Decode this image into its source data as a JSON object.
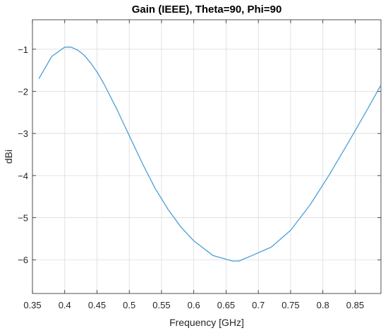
{
  "chart_data": {
    "type": "line",
    "title": "Gain (IEEE), Theta=90, Phi=90",
    "xlabel": "Frequency [GHz]",
    "ylabel": "dBi",
    "xlim": [
      0.35,
      0.89
    ],
    "ylim": [
      -6.8,
      -0.3
    ],
    "xticks": [
      0.35,
      0.4,
      0.45,
      0.5,
      0.55,
      0.6,
      0.65,
      0.7,
      0.75,
      0.8,
      0.85
    ],
    "xtick_labels": [
      "0.35",
      "0.4",
      "0.45",
      "0.5",
      "0.55",
      "0.6",
      "0.65",
      "0.7",
      "0.75",
      "0.8",
      "0.85"
    ],
    "yticks": [
      -6,
      -5,
      -4,
      -3,
      -2,
      -1
    ],
    "ytick_labels": [
      "−6",
      "−5",
      "−4",
      "−3",
      "−2",
      "−1"
    ],
    "grid": true,
    "series": [
      {
        "color": "#4a9fd8",
        "x": [
          0.36,
          0.38,
          0.4,
          0.41,
          0.42,
          0.43,
          0.44,
          0.45,
          0.46,
          0.48,
          0.5,
          0.52,
          0.54,
          0.56,
          0.58,
          0.6,
          0.63,
          0.66,
          0.67,
          0.69,
          0.72,
          0.75,
          0.78,
          0.81,
          0.84,
          0.87,
          0.89
        ],
        "y": [
          -1.7,
          -1.17,
          -0.95,
          -0.95,
          -1.02,
          -1.14,
          -1.32,
          -1.54,
          -1.8,
          -2.4,
          -3.05,
          -3.7,
          -4.3,
          -4.8,
          -5.22,
          -5.55,
          -5.9,
          -6.03,
          -6.03,
          -5.9,
          -5.7,
          -5.3,
          -4.7,
          -3.98,
          -3.2,
          -2.4,
          -1.85
        ]
      }
    ]
  }
}
